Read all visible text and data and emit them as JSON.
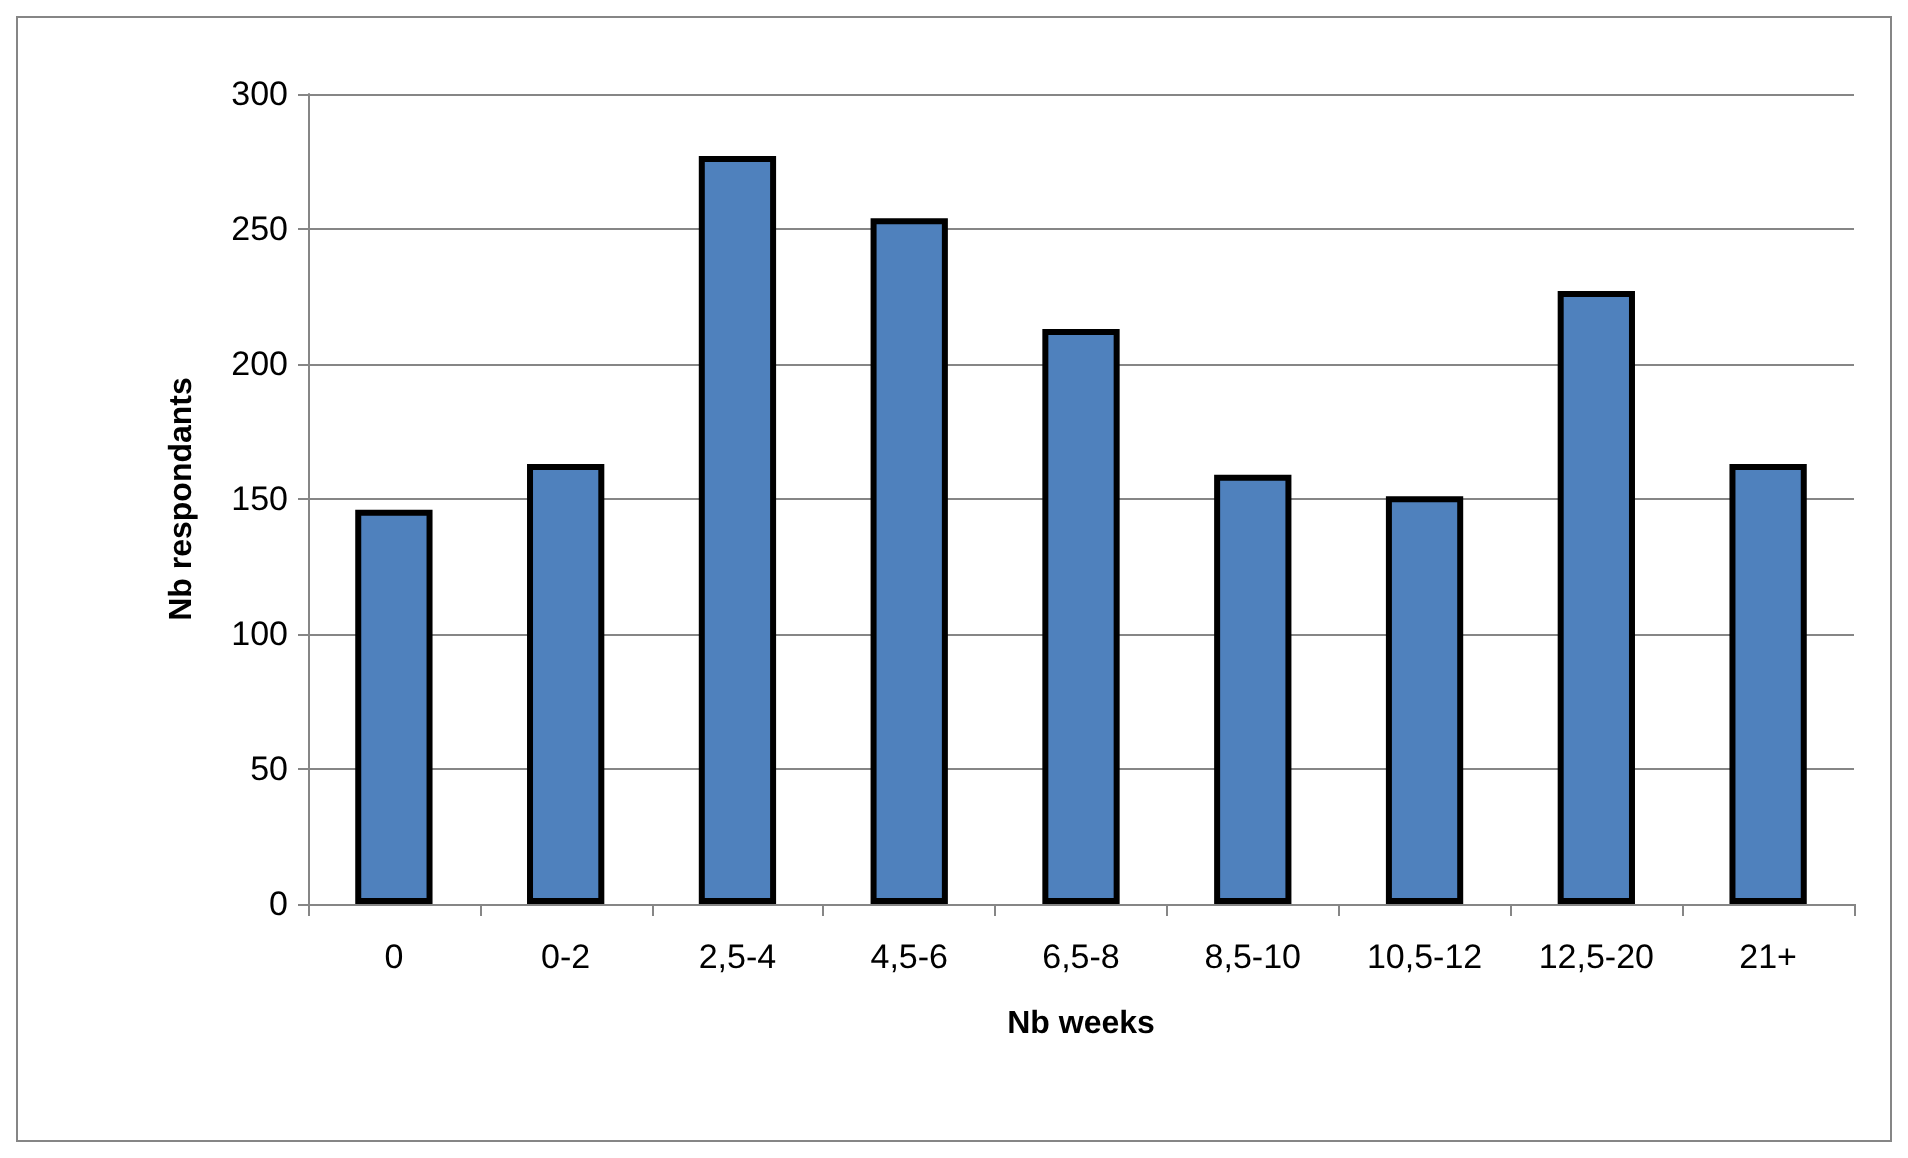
{
  "chart_data": {
    "type": "bar",
    "xlabel": "Nb weeks",
    "ylabel": "Nb respondants",
    "categories": [
      "0",
      "0-2",
      "2,5-4",
      "4,5-6",
      "6,5-8",
      "8,5-10",
      "10,5-12",
      "12,5-20",
      "21+"
    ],
    "values": [
      146,
      163,
      277,
      254,
      213,
      159,
      151,
      227,
      163
    ],
    "color": "#4f81bd",
    "ylim": [
      0,
      300
    ],
    "yticks": [
      0,
      50,
      100,
      150,
      200,
      250,
      300
    ],
    "grid": "y"
  }
}
